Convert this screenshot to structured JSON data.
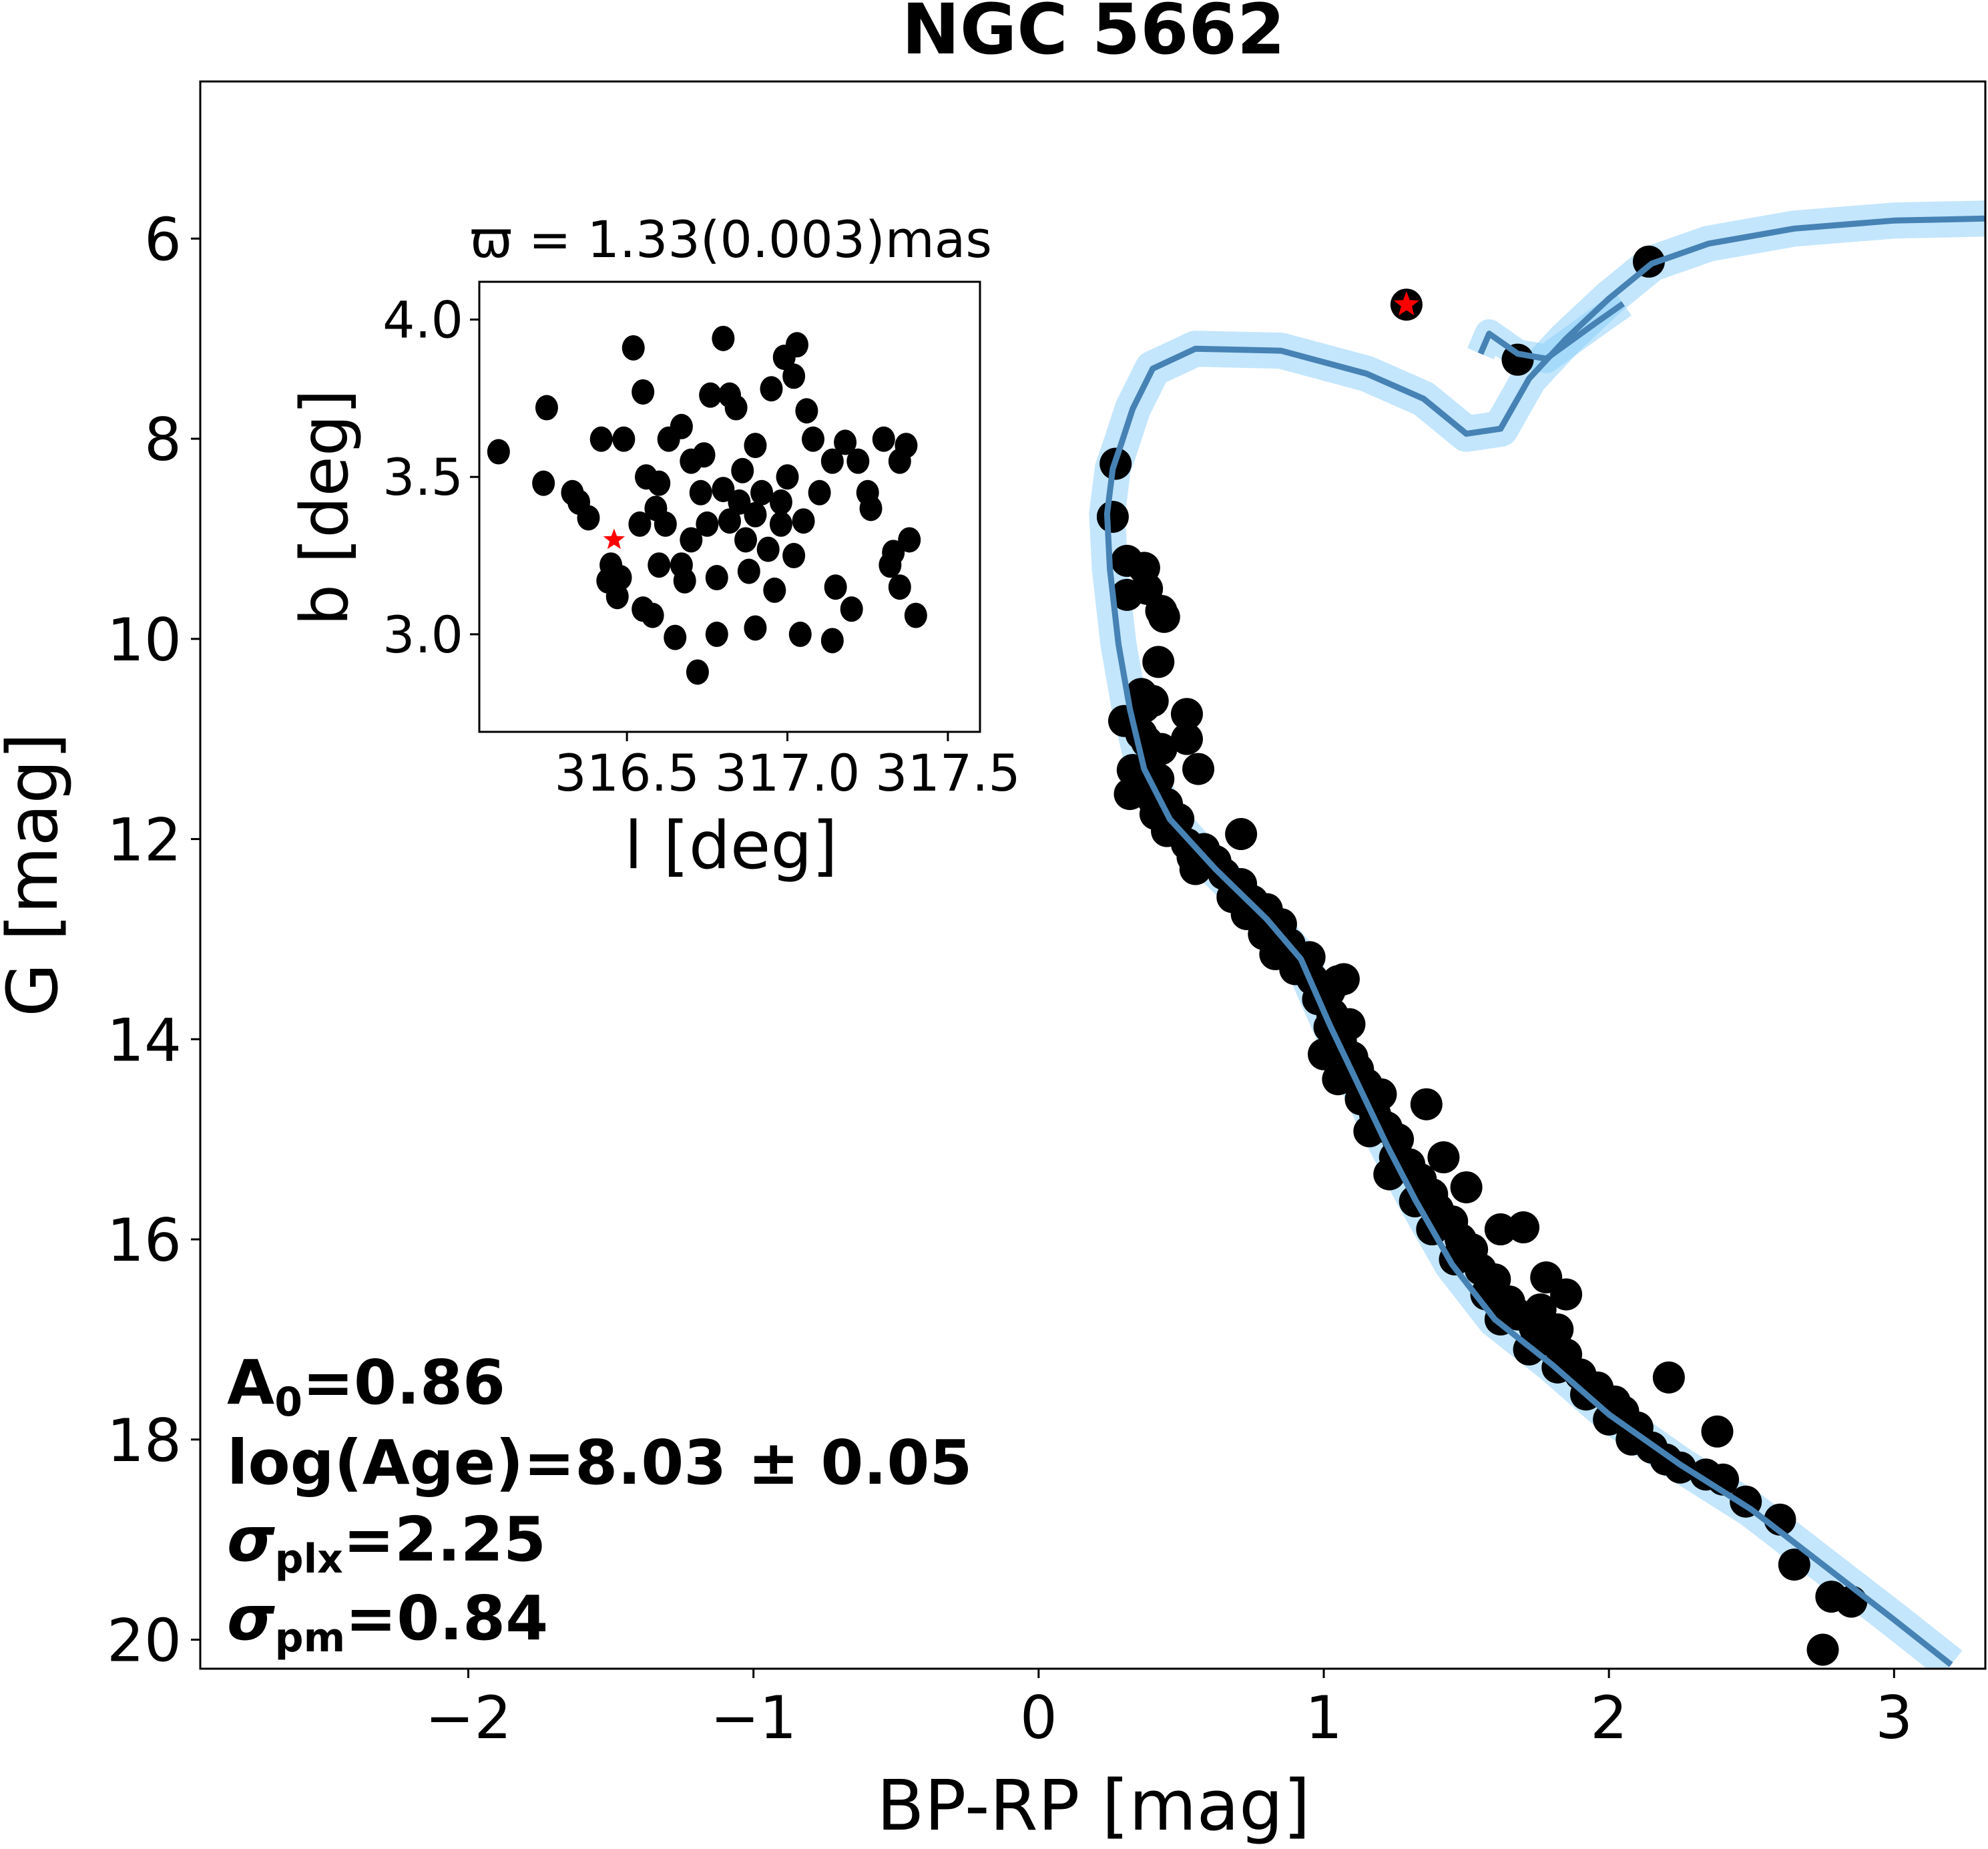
{
  "chart_data": [
    {
      "id": "cmd",
      "type": "scatter",
      "title": "NGC 5662",
      "xlabel": "BP-RP [mag]",
      "ylabel": "G [mag]",
      "xlim": [
        -2.94,
        3.32
      ],
      "ylim": [
        20.29,
        4.43
      ],
      "y_inverted": true,
      "grid": false,
      "xticks": [
        -2,
        -1,
        0,
        1,
        2,
        3
      ],
      "xtick_labels": [
        "−2",
        "−1",
        "0",
        "1",
        "2",
        "3"
      ],
      "yticks": [
        6,
        8,
        10,
        12,
        14,
        16,
        18,
        20
      ],
      "ytick_labels": [
        "6",
        "8",
        "10",
        "12",
        "14",
        "16",
        "18",
        "20"
      ],
      "colors": {
        "members": "#000000",
        "highlight": "#ff0000",
        "isochrone": "#4682b4",
        "band": "#87cefa"
      },
      "annotations": [
        {
          "key": "A0",
          "base": "A",
          "sub": "0",
          "rest": "=0.86"
        },
        {
          "key": "logage",
          "base": "log(Age)=8.03 ± 0.05",
          "sub": "",
          "rest": ""
        },
        {
          "key": "sigplx",
          "base": "σ",
          "sub": "plx",
          "rest": "=2.25"
        },
        {
          "key": "sigpm",
          "base": "σ",
          "sub": "pm",
          "rest": "=0.84"
        }
      ],
      "highlight_star": {
        "x": 1.29,
        "y": 6.66
      },
      "series": [
        {
          "name": "members",
          "points": [
            [
              2.14,
              6.23
            ],
            [
              1.68,
              7.21
            ],
            [
              0.27,
              8.25
            ],
            [
              0.26,
              8.78
            ],
            [
              0.31,
              9.22
            ],
            [
              0.37,
              9.29
            ],
            [
              0.31,
              9.56
            ],
            [
              0.38,
              9.5
            ],
            [
              0.43,
              9.72
            ],
            [
              0.44,
              9.78
            ],
            [
              0.42,
              10.23
            ],
            [
              0.36,
              10.55
            ],
            [
              0.37,
              10.68
            ],
            [
              0.4,
              10.62
            ],
            [
              0.33,
              10.82
            ],
            [
              0.3,
              10.82
            ],
            [
              0.36,
              10.95
            ],
            [
              0.38,
              11.03
            ],
            [
              0.43,
              11.1
            ],
            [
              0.52,
              11.0
            ],
            [
              0.56,
              11.3
            ],
            [
              0.33,
              11.31
            ],
            [
              0.38,
              11.28
            ],
            [
              0.42,
              11.4
            ],
            [
              0.36,
              11.52
            ],
            [
              0.32,
              11.55
            ],
            [
              0.4,
              11.6
            ],
            [
              0.45,
              11.65
            ],
            [
              0.41,
              11.75
            ],
            [
              0.49,
              11.8
            ],
            [
              0.45,
              11.92
            ],
            [
              0.52,
              12.05
            ],
            [
              0.54,
              12.18
            ],
            [
              0.62,
              12.22
            ],
            [
              0.58,
              12.1
            ],
            [
              0.55,
              12.3
            ],
            [
              0.65,
              12.35
            ],
            [
              0.71,
              12.45
            ],
            [
              0.68,
              12.58
            ],
            [
              0.75,
              12.62
            ],
            [
              0.8,
              12.7
            ],
            [
              0.73,
              12.75
            ],
            [
              0.85,
              12.85
            ],
            [
              0.79,
              12.95
            ],
            [
              0.88,
              13.05
            ],
            [
              0.83,
              13.15
            ],
            [
              0.95,
              13.18
            ],
            [
              0.9,
              13.3
            ],
            [
              0.96,
              13.4
            ],
            [
              1.02,
              13.52
            ],
            [
              1.05,
              13.42
            ],
            [
              1.07,
              13.4
            ],
            [
              0.98,
              13.6
            ],
            [
              1.03,
              13.75
            ],
            [
              1.09,
              13.85
            ],
            [
              1.02,
              13.88
            ],
            [
              1.06,
              14.02
            ],
            [
              1.0,
              14.15
            ],
            [
              1.1,
              14.18
            ],
            [
              1.12,
              14.3
            ],
            [
              1.05,
              14.4
            ],
            [
              1.15,
              14.45
            ],
            [
              1.13,
              14.6
            ],
            [
              1.2,
              14.55
            ],
            [
              1.18,
              14.75
            ],
            [
              1.22,
              14.88
            ],
            [
              1.16,
              14.92
            ],
            [
              1.26,
              15.0
            ],
            [
              1.25,
              15.18
            ],
            [
              1.3,
              15.25
            ],
            [
              1.23,
              15.35
            ],
            [
              1.34,
              15.4
            ],
            [
              1.38,
              15.55
            ],
            [
              1.32,
              15.62
            ],
            [
              1.4,
              15.7
            ],
            [
              1.45,
              15.82
            ],
            [
              1.38,
              15.9
            ],
            [
              1.48,
              16.0
            ],
            [
              1.52,
              16.1
            ],
            [
              1.46,
              16.2
            ],
            [
              1.55,
              16.3
            ],
            [
              1.6,
              16.4
            ],
            [
              1.57,
              16.55
            ],
            [
              1.65,
              16.62
            ],
            [
              1.68,
              16.75
            ],
            [
              1.62,
              16.8
            ],
            [
              1.74,
              16.88
            ],
            [
              1.78,
              17.0
            ],
            [
              1.72,
              17.1
            ],
            [
              1.85,
              17.15
            ],
            [
              1.82,
              17.28
            ],
            [
              1.9,
              17.35
            ],
            [
              1.96,
              17.48
            ],
            [
              1.92,
              17.55
            ],
            [
              2.02,
              17.62
            ],
            [
              2.05,
              17.72
            ],
            [
              2.0,
              17.8
            ],
            [
              2.1,
              17.88
            ],
            [
              2.08,
              18.0
            ],
            [
              2.15,
              18.08
            ],
            [
              2.2,
              18.2
            ],
            [
              2.25,
              18.28
            ],
            [
              2.34,
              18.35
            ],
            [
              2.4,
              18.4
            ],
            [
              2.48,
              18.62
            ],
            [
              2.6,
              18.8
            ],
            [
              2.65,
              19.25
            ],
            [
              2.78,
              19.57
            ],
            [
              2.85,
              19.62
            ],
            [
              2.75,
              20.1
            ],
            [
              1.36,
              14.65
            ],
            [
              1.42,
              15.18
            ],
            [
              1.5,
              15.48
            ],
            [
              1.62,
              15.9
            ],
            [
              1.7,
              15.88
            ],
            [
              1.78,
              16.38
            ],
            [
              1.85,
              16.55
            ],
            [
              1.82,
              16.9
            ],
            [
              1.76,
              16.7
            ],
            [
              2.21,
              17.38
            ],
            [
              2.38,
              17.92
            ],
            [
              0.71,
              11.95
            ],
            [
              0.52,
              10.75
            ]
          ]
        }
      ],
      "isochrone": {
        "name": "best-fit isochrone",
        "points": [
          [
            3.2,
            20.25
          ],
          [
            3.0,
            19.8
          ],
          [
            2.75,
            19.25
          ],
          [
            2.5,
            18.7
          ],
          [
            2.25,
            18.25
          ],
          [
            2.0,
            17.75
          ],
          [
            1.8,
            17.25
          ],
          [
            1.6,
            16.8
          ],
          [
            1.45,
            16.25
          ],
          [
            1.32,
            15.6
          ],
          [
            1.22,
            15.05
          ],
          [
            1.12,
            14.45
          ],
          [
            1.02,
            13.85
          ],
          [
            0.92,
            13.2
          ],
          [
            0.8,
            12.8
          ],
          [
            0.62,
            12.3
          ],
          [
            0.46,
            11.8
          ],
          [
            0.37,
            11.3
          ],
          [
            0.32,
            10.7
          ],
          [
            0.28,
            10.05
          ],
          [
            0.25,
            9.3
          ],
          [
            0.24,
            8.75
          ],
          [
            0.26,
            8.3
          ],
          [
            0.29,
            8.05
          ],
          [
            0.33,
            7.7
          ],
          [
            0.4,
            7.3
          ],
          [
            0.55,
            7.1
          ],
          [
            0.85,
            7.12
          ],
          [
            1.15,
            7.35
          ],
          [
            1.35,
            7.6
          ],
          [
            1.5,
            7.95
          ],
          [
            1.62,
            7.9
          ],
          [
            1.72,
            7.4
          ],
          [
            1.85,
            7.0
          ],
          [
            2.0,
            6.6
          ],
          [
            2.15,
            6.25
          ],
          [
            2.35,
            6.05
          ],
          [
            2.65,
            5.9
          ],
          [
            3.0,
            5.82
          ],
          [
            3.32,
            5.8
          ]
        ],
        "branch": [
          [
            1.55,
            7.15
          ],
          [
            1.58,
            6.95
          ],
          [
            1.68,
            7.15
          ],
          [
            1.78,
            7.2
          ],
          [
            1.95,
            6.85
          ],
          [
            2.05,
            6.65
          ]
        ]
      }
    },
    {
      "id": "inset",
      "type": "scatter",
      "title": "ϖ = 1.33(0.003)mas",
      "xlabel": "l [deg]",
      "ylabel": "b [deg]",
      "xlim": [
        316.04,
        317.6
      ],
      "ylim": [
        2.69,
        4.12
      ],
      "grid": false,
      "xticks": [
        316.5,
        317.0,
        317.5
      ],
      "xtick_labels": [
        "316.5",
        "317.0",
        "317.5"
      ],
      "yticks": [
        3.0,
        3.5,
        4.0
      ],
      "ytick_labels": [
        "3.0",
        "3.5",
        "4.0"
      ],
      "highlight_star": {
        "x": 316.46,
        "y": 3.3
      },
      "points": [
        [
          316.1,
          3.58
        ],
        [
          316.25,
          3.72
        ],
        [
          316.24,
          3.48
        ],
        [
          316.33,
          3.45
        ],
        [
          316.35,
          3.42
        ],
        [
          316.38,
          3.37
        ],
        [
          316.42,
          3.62
        ],
        [
          316.49,
          3.62
        ],
        [
          316.52,
          3.91
        ],
        [
          316.55,
          3.77
        ],
        [
          316.45,
          3.22
        ],
        [
          316.44,
          3.17
        ],
        [
          316.47,
          3.12
        ],
        [
          316.54,
          3.35
        ],
        [
          316.56,
          3.5
        ],
        [
          316.6,
          3.48
        ],
        [
          316.59,
          3.4
        ],
        [
          316.63,
          3.62
        ],
        [
          316.67,
          3.66
        ],
        [
          316.7,
          3.55
        ],
        [
          316.73,
          3.45
        ],
        [
          316.67,
          3.22
        ],
        [
          316.58,
          3.06
        ],
        [
          316.6,
          3.22
        ],
        [
          316.68,
          3.17
        ],
        [
          316.74,
          3.57
        ],
        [
          316.76,
          3.76
        ],
        [
          316.8,
          3.94
        ],
        [
          316.82,
          3.76
        ],
        [
          316.85,
          3.42
        ],
        [
          316.87,
          3.3
        ],
        [
          316.84,
          3.72
        ],
        [
          316.9,
          3.6
        ],
        [
          316.92,
          3.45
        ],
        [
          316.95,
          3.78
        ],
        [
          316.99,
          3.88
        ],
        [
          317.02,
          3.82
        ],
        [
          317.06,
          3.71
        ],
        [
          317.03,
          3.92
        ],
        [
          317.08,
          3.62
        ],
        [
          316.98,
          3.35
        ],
        [
          317.0,
          3.5
        ],
        [
          317.02,
          3.25
        ],
        [
          317.1,
          3.45
        ],
        [
          317.14,
          3.55
        ],
        [
          317.18,
          3.61
        ],
        [
          317.22,
          3.55
        ],
        [
          317.3,
          3.62
        ],
        [
          317.35,
          3.55
        ],
        [
          317.37,
          3.6
        ],
        [
          317.26,
          3.4
        ],
        [
          317.25,
          3.45
        ],
        [
          317.32,
          3.22
        ],
        [
          317.33,
          3.26
        ],
        [
          317.38,
          3.3
        ],
        [
          317.35,
          3.15
        ],
        [
          317.4,
          3.06
        ],
        [
          317.15,
          3.15
        ],
        [
          317.2,
          3.08
        ],
        [
          316.96,
          3.14
        ],
        [
          316.9,
          3.02
        ],
        [
          317.04,
          3.0
        ],
        [
          317.14,
          2.98
        ],
        [
          316.78,
          3.0
        ],
        [
          316.72,
          2.88
        ],
        [
          316.65,
          2.99
        ],
        [
          316.55,
          3.08
        ],
        [
          316.48,
          3.18
        ],
        [
          316.75,
          3.35
        ],
        [
          316.82,
          3.36
        ],
        [
          316.88,
          3.2
        ],
        [
          316.94,
          3.27
        ],
        [
          316.78,
          3.18
        ],
        [
          316.7,
          3.3
        ],
        [
          316.62,
          3.35
        ],
        [
          316.9,
          3.38
        ],
        [
          316.98,
          3.42
        ],
        [
          317.05,
          3.36
        ],
        [
          316.86,
          3.52
        ],
        [
          316.8,
          3.46
        ]
      ]
    }
  ]
}
